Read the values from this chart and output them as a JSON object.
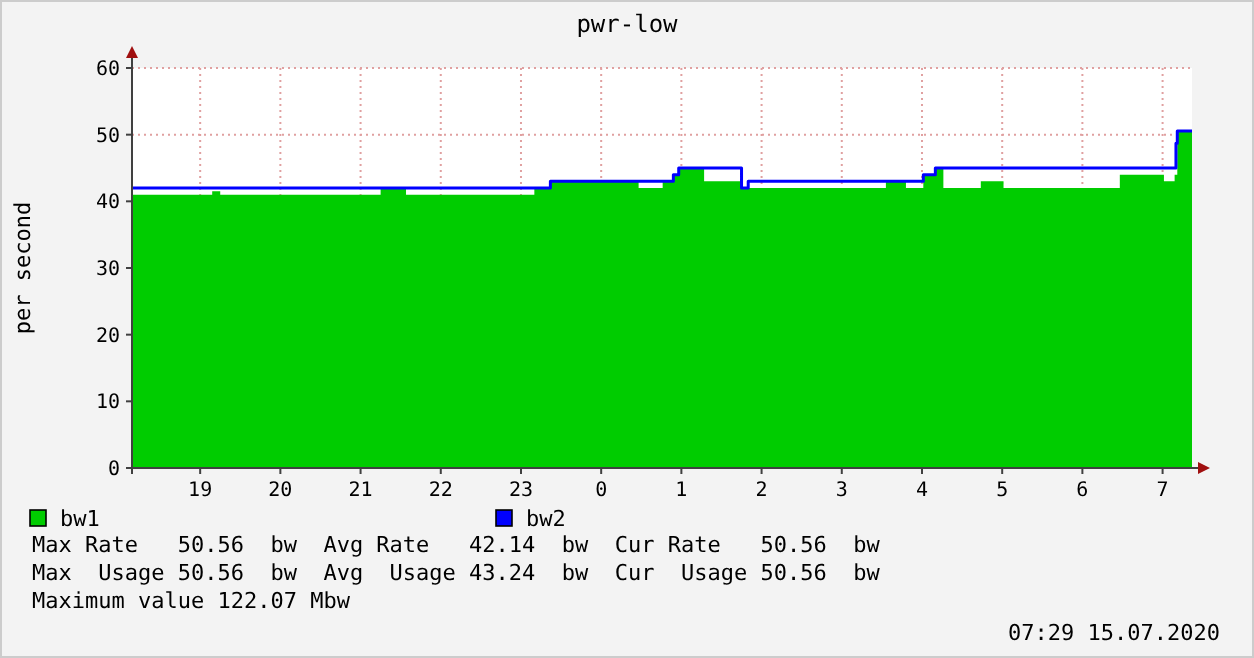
{
  "chart_data": {
    "type": "area",
    "title": "pwr-low",
    "ylabel": "per second",
    "xlim": [
      "2020-07-14T18:09",
      "2020-07-15T07:22"
    ],
    "xticks": [
      {
        "value": "2020-07-14T19:00",
        "label": "19"
      },
      {
        "value": "2020-07-14T20:00",
        "label": "20"
      },
      {
        "value": "2020-07-14T21:00",
        "label": "21"
      },
      {
        "value": "2020-07-14T22:00",
        "label": "22"
      },
      {
        "value": "2020-07-14T23:00",
        "label": "23"
      },
      {
        "value": "2020-07-15T00:00",
        "label": "0"
      },
      {
        "value": "2020-07-15T01:00",
        "label": "1"
      },
      {
        "value": "2020-07-15T02:00",
        "label": "2"
      },
      {
        "value": "2020-07-15T03:00",
        "label": "3"
      },
      {
        "value": "2020-07-15T04:00",
        "label": "4"
      },
      {
        "value": "2020-07-15T05:00",
        "label": "5"
      },
      {
        "value": "2020-07-15T06:00",
        "label": "6"
      },
      {
        "value": "2020-07-15T07:00",
        "label": "7"
      }
    ],
    "ylim": [
      0,
      60
    ],
    "yticks": [
      0,
      10,
      20,
      30,
      40,
      50,
      60
    ],
    "grid": true,
    "legend": "bottom left",
    "series": [
      {
        "name": "bw1",
        "color": "#00cc00",
        "x": [
          "2020-07-14T18:09",
          "2020-07-14T19:09",
          "2020-07-14T19:15",
          "2020-07-14T21:15",
          "2020-07-14T21:34",
          "2020-07-14T23:10",
          "2020-07-14T23:22",
          "2020-07-15T00:28",
          "2020-07-15T00:46",
          "2020-07-15T00:54",
          "2020-07-15T00:58",
          "2020-07-15T01:17",
          "2020-07-15T01:45",
          "2020-07-15T03:33",
          "2020-07-15T03:48",
          "2020-07-15T04:01",
          "2020-07-15T04:10",
          "2020-07-15T04:16",
          "2020-07-15T04:44",
          "2020-07-15T05:01",
          "2020-07-15T06:28",
          "2020-07-15T07:01",
          "2020-07-15T07:09",
          "2020-07-15T07:11",
          "2020-07-15T07:22"
        ],
        "values": [
          41,
          41.5,
          41,
          42,
          41,
          42,
          43,
          42,
          43,
          44,
          45,
          43,
          42,
          43,
          42,
          44,
          45,
          42,
          43,
          42,
          44,
          43,
          44,
          50.56,
          50.56
        ]
      },
      {
        "name": "bw2",
        "type": "step",
        "color": "#0000ff",
        "x": [
          "2020-07-14T18:09",
          "2020-07-14T23:22",
          "2020-07-15T00:54",
          "2020-07-15T00:58",
          "2020-07-15T01:45",
          "2020-07-15T01:50",
          "2020-07-15T04:01",
          "2020-07-15T04:10",
          "2020-07-15T07:10",
          "2020-07-15T07:11",
          "2020-07-15T07:22"
        ],
        "values": [
          42,
          43,
          44,
          45,
          42,
          43,
          44,
          45,
          48.7,
          50.56,
          50.56
        ]
      }
    ],
    "annotations": [
      "Max Rate   50.56  bw  Avg Rate   42.14  bw  Cur Rate   50.56  bw",
      "Max  Usage 50.56  bw  Avg  Usage 43.24  bw  Cur  Usage 50.56  bw",
      "Maximum value 122.07 Mbw",
      "07:29 15.07.2020"
    ]
  }
}
